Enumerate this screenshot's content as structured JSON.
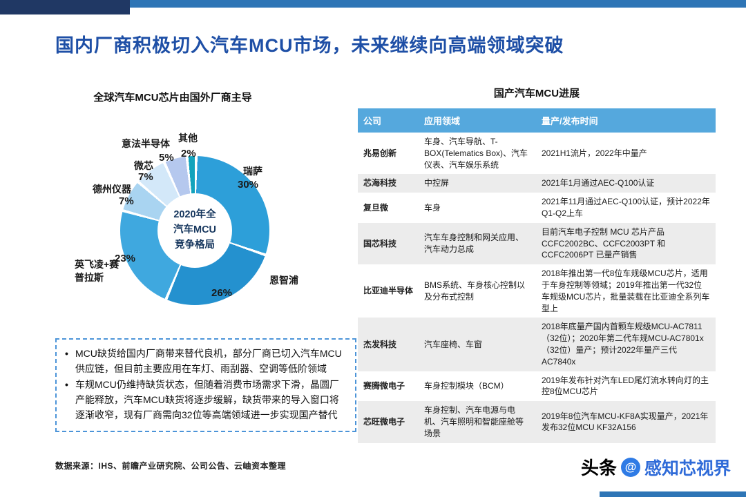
{
  "page": {
    "title": "国内厂商积极切入汽车MCU市场，未来继续向高端领域突破",
    "source_note": "数据来源：IHS、前瞻产业研究院、公司公告、云岫资本整理",
    "watermark": {
      "prefix": "头条",
      "at": "@",
      "handle": "感知芯视界"
    }
  },
  "colors": {
    "title_blue": "#1E4FA6",
    "deco_navy": "#203864",
    "deco_blue": "#2E75B6",
    "table_header_blue": "#55A8DD",
    "zebra_gray": "#ECECEC",
    "note_border_blue": "#4C94D8"
  },
  "notes": {
    "marker": "•",
    "bullets": [
      "MCU缺货给国内厂商带来替代良机，部分厂商已切入汽车MCU供应链，但目前主要应用在车灯、雨刮器、空调等低阶领域",
      "车规MCU仍维持缺货状态，但随着消费市场需求下滑，晶圆厂产能释放，汽车MCU缺货将逐步缓解，缺货带来的导入窗口将逐渐收窄，现有厂商需向32位等高端领域进一步实现国产替代"
    ]
  },
  "chart_data": [
    {
      "type": "pie",
      "title": "全球汽车MCU芯片由国外厂商主导",
      "center_label": "2020年全\n汽车MCU\n竞争格局",
      "labels": [
        "瑞萨",
        "恩智浦",
        "英飞凌+赛普拉斯",
        "德州仪器",
        "微芯",
        "意法半导体",
        "其他"
      ],
      "values": [
        30,
        26,
        23,
        7,
        7,
        5,
        2
      ],
      "pct_labels": [
        "30%",
        "26%",
        "23%",
        "7%",
        "7%",
        "5%",
        "2%"
      ],
      "unit": "%",
      "colors": [
        "#2D9FD9",
        "#2491CF",
        "#3FA8DF",
        "#A9D4F1",
        "#D3E8F9",
        "#B5C8EE",
        "#12A3BC"
      ],
      "legend_position": "around"
    },
    {
      "type": "table",
      "title": "国产汽车MCU进展",
      "headers": [
        "公司",
        "应用领域",
        "量产/发布时间"
      ],
      "rows": [
        [
          "兆易创新",
          "车身、汽车导航、T-BOX(Telematics Box)、汽车仪表、汽车娱乐系统",
          "2021H1流片，2022年中量产"
        ],
        [
          "芯海科技",
          "中控屏",
          "2021年1月通过AEC-Q100认证"
        ],
        [
          "复旦微",
          "车身",
          "2021年11月通过AEC-Q100认证，预计2022年Q1-Q2上车"
        ],
        [
          "国芯科技",
          "汽车车身控制和网关应用、汽车动力总成",
          "目前汽车电子控制 MCU 芯片产品CCFC2002BC、CCFC2003PT 和CCFC2006PT 已量产销售"
        ],
        [
          "比亚迪半导体",
          "BMS系统、车身核心控制以及分布式控制",
          "2018年推出第一代8位车规级MCU芯片，适用于车身控制等领域；2019年推出第一代32位车规级MCU芯片，批量装载在比亚迪全系列车型上"
        ],
        [
          "杰发科技",
          "汽车座椅、车窗",
          "2018年底量产国内首颗车规级MCU-AC7811（32位）；2020年第二代车规MCU-AC7801x（32位）量产；预计2022年量产三代AC7840x"
        ],
        [
          "赛腾微电子",
          "车身控制模块（BCM）",
          "2019年发布针对汽车LED尾灯流水转向灯的主控8位MCU芯片"
        ],
        [
          "芯旺微电子",
          "车身控制、汽车电源与电机、汽车照明和智能座舱等场景",
          "2019年8位汽车MCU-KF8A实现量产，2021年发布32位MCU KF32A156"
        ]
      ]
    }
  ]
}
